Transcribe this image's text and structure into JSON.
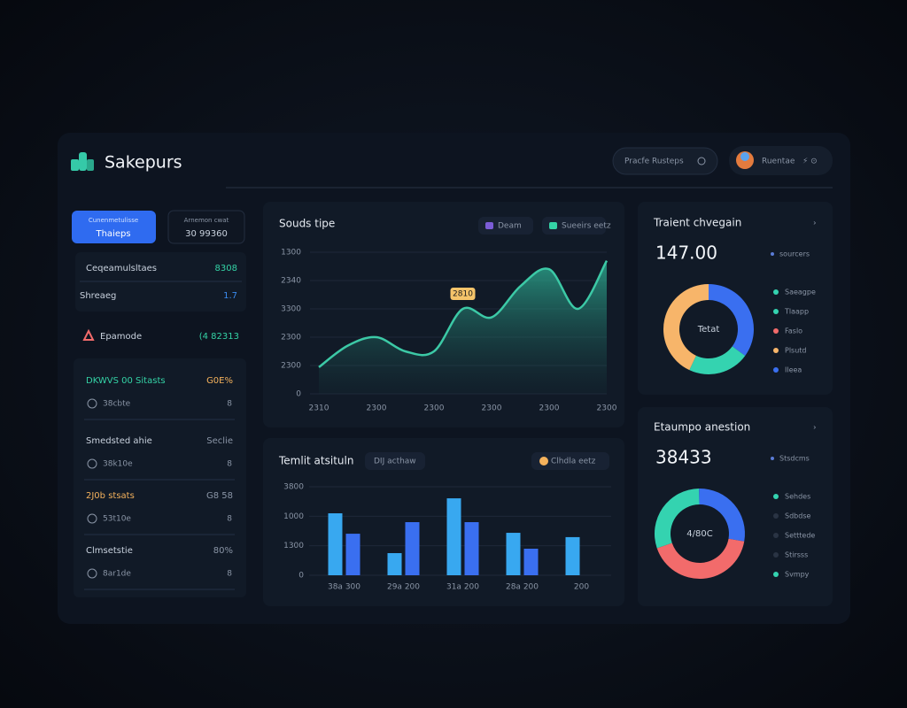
{
  "header": {
    "logo": "Sakepurs",
    "button": "Pracfe Rusteps",
    "user": "Ruentae"
  },
  "sidebar": {
    "tabs": [
      {
        "caption": "Cunenmetulisse",
        "label": "Thaieps"
      },
      {
        "caption": "Arnemon cwat",
        "label": "30 99360"
      }
    ],
    "stats": [
      {
        "label": "Ceqeamulsltaes",
        "value": "8308"
      },
      {
        "label": "Shreaeg",
        "value": "1.7"
      }
    ],
    "alert": {
      "label": "Epamode",
      "value": "(4 82313"
    },
    "list": [
      {
        "title": "DKWVS 00 Sitasts",
        "badge": "G0E%",
        "item": "38cbte",
        "count": "8"
      },
      {
        "title": "Smedsted ahie",
        "badge": "Seclie",
        "item": "38k10e",
        "count": "8"
      },
      {
        "title": "2J0b stsats",
        "badge": "G8 58",
        "item": "53t10e",
        "count": "8"
      },
      {
        "title": "Clmsetstie",
        "badge": "80%",
        "item": "8ar1de",
        "count": "8"
      }
    ]
  },
  "chart_data": [
    {
      "type": "line",
      "title": "Souds tipe",
      "legend": [
        {
          "label": "Deam",
          "color": "#7b5cd6"
        },
        {
          "label": "Sueeirs eetz",
          "color": "#34d3a6"
        }
      ],
      "categories": [
        "2310",
        null,
        "2300",
        null,
        "2300",
        null,
        "2300",
        null,
        "2300",
        null,
        "2300"
      ],
      "series": [
        {
          "color": "#3cc9a6",
          "values": [
            940,
            1700,
            2000,
            1500,
            1500,
            3000,
            2700,
            3800,
            4400,
            3000,
            4700
          ]
        }
      ],
      "annotation": "2810",
      "ylim": [
        0,
        5000
      ],
      "yticks": [
        0,
        {
          "value": 1000,
          "label": "2300"
        },
        {
          "value": 2000,
          "label": "2300"
        },
        {
          "value": 3000,
          "label": "3300"
        },
        {
          "value": 4000,
          "label": "2340"
        },
        {
          "value": 5000,
          "label": "1300"
        }
      ]
    },
    {
      "type": "bar",
      "title": "Temlit atsituln",
      "tag": "DIJ acthaw",
      "legend": [
        {
          "label": "Clhdla eetz",
          "color": "#f5b25c"
        }
      ],
      "categories": [
        "38a 300",
        "29a 200",
        "31a 200",
        "28a 200",
        "200"
      ],
      "series": [
        {
          "color": "#38a8f0",
          "values": [
            2730,
            975,
            3390,
            1870,
            1680
          ]
        },
        {
          "color": "#3a6ff0",
          "values": [
            1830,
            2340,
            2340,
            1170,
            null
          ]
        }
      ],
      "ylim": [
        0,
        3900
      ],
      "yticks": [
        0,
        1300,
        {
          "value": 2600,
          "label": "1000"
        },
        {
          "value": 3900,
          "label": "3800"
        }
      ]
    },
    {
      "type": "pie",
      "title": "Traient chvegain",
      "value": "147.00",
      "note": "sourcers",
      "center": "Tetat",
      "values": [
        35,
        22,
        43
      ],
      "colors": [
        "#3a6ff0",
        "#34d3b0",
        "#f7b56a"
      ],
      "legend": [
        {
          "label": "Saeagpe",
          "color": "#34d3b0"
        },
        {
          "label": "Tlaapp",
          "color": "#34d3b0"
        },
        {
          "label": "Faslo",
          "color": "#f26b6b"
        },
        {
          "label": "Plsutd",
          "color": "#f7b56a"
        },
        {
          "label": "Ileea",
          "color": "#3a6ff0"
        }
      ]
    },
    {
      "type": "pie",
      "title": "Etaumpo anestion",
      "value": "38433",
      "note": "Stsdcms",
      "center": "4/80C",
      "values": [
        30,
        28,
        42
      ],
      "colors": [
        "#34d3b0",
        "#3a6ff0",
        "#f26b6b"
      ],
      "legend": [
        {
          "label": "Sehdes",
          "color": "#34d3b0"
        },
        {
          "label": "Sdbdse",
          "color": "#2a3444"
        },
        {
          "label": "Setttede",
          "color": "#2a3444"
        },
        {
          "label": "Stirsss",
          "color": "#2a3444"
        },
        {
          "label": "Svmpy",
          "color": "#34d3b0"
        }
      ]
    }
  ]
}
